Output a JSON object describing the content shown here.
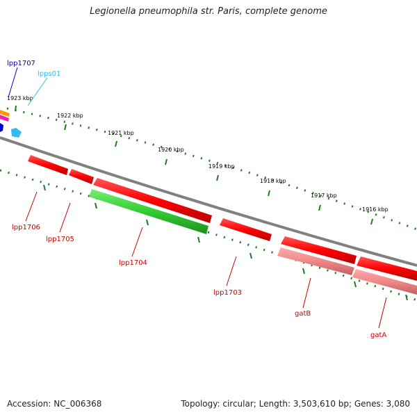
{
  "title": "Legionella pneumophila str. Paris, complete genome",
  "footer": {
    "accession": "Accession: NC_006368",
    "topology": "Topology: circular; Length: 3,503,610 bp; Genes: 3,080"
  },
  "scale_labels": [
    "1923 kbp",
    "1922 kbp",
    "1921 kbp",
    "1920 kbp",
    "1919 kbp",
    "1918 kbp",
    "1917 kbp",
    "1916 kbp"
  ],
  "genes": [
    {
      "name": "lpp1707",
      "strand": "forward",
      "color": "#1a1aa6"
    },
    {
      "name": "lpps01",
      "strand": "forward",
      "color": "#33bbee"
    },
    {
      "name": "lpp1706",
      "strand": "reverse",
      "color": "#d40000"
    },
    {
      "name": "lpp1705",
      "strand": "reverse",
      "color": "#d40000"
    },
    {
      "name": "lpp1704",
      "strand": "reverse",
      "color": "#d40000"
    },
    {
      "name": "lpp1703",
      "strand": "reverse",
      "color": "#d40000"
    },
    {
      "name": "gatB",
      "strand": "reverse",
      "color": "#d40000"
    },
    {
      "name": "gatA",
      "strand": "reverse",
      "color": "#d40000"
    }
  ],
  "colors": {
    "backbone": "#808080",
    "tick": "#1f7a1f",
    "cds": "#ff0000",
    "orf": "#33cc33",
    "rrna": "#ee8888",
    "label_forward": "#0000cc",
    "label_reverse": "#cc0000",
    "label_rna": "#33bbee"
  }
}
